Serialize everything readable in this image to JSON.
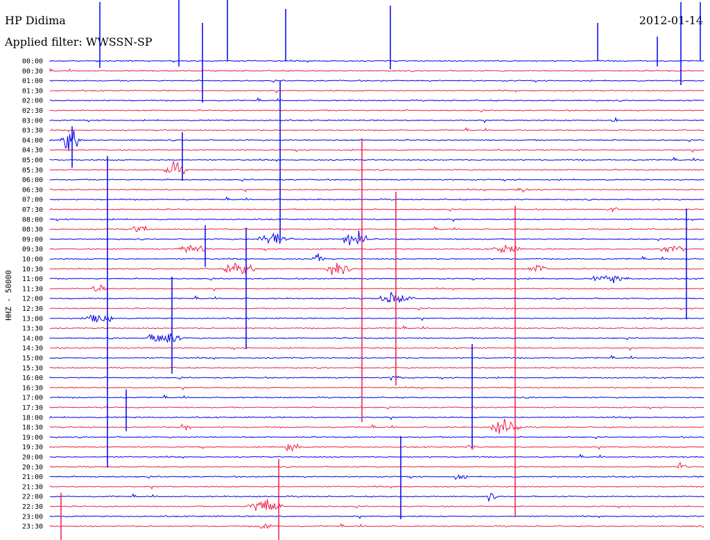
{
  "header": {
    "station": "HP Didima",
    "date": "2012-01-14",
    "filter": "Applied filter: WWSSN-SP"
  },
  "chart_data": {
    "type": "line",
    "channel_label": "HHZ - 50000",
    "row_labels": [
      "00:00",
      "00:30",
      "01:00",
      "01:30",
      "02:00",
      "02:30",
      "03:00",
      "03:30",
      "04:00",
      "04:30",
      "05:00",
      "05:30",
      "06:00",
      "06:30",
      "07:00",
      "07:30",
      "08:00",
      "08:30",
      "09:00",
      "09:30",
      "10:00",
      "10:30",
      "11:00",
      "11:30",
      "12:00",
      "12:30",
      "13:00",
      "13:30",
      "14:00",
      "14:30",
      "15:00",
      "15:30",
      "16:00",
      "16:30",
      "17:00",
      "17:30",
      "18:00",
      "18:30",
      "19:00",
      "19:30",
      "20:00",
      "20:30",
      "21:00",
      "21:30",
      "22:00",
      "22:30",
      "23:00",
      "23:30"
    ],
    "colors": [
      "#0000ee",
      "#ee1d4a"
    ],
    "grid": false
  }
}
